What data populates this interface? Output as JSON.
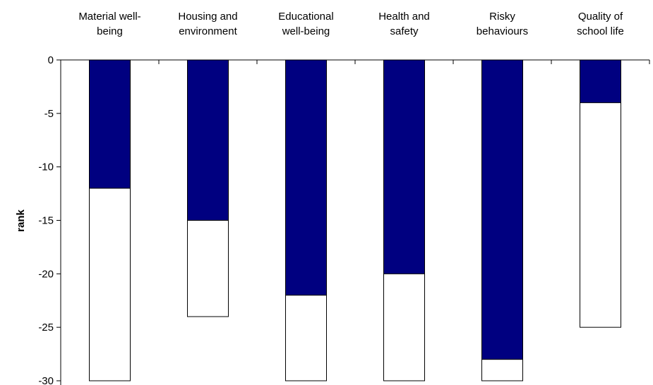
{
  "chart_data": {
    "type": "bar",
    "categories": [
      [
        "Material well-",
        "being"
      ],
      [
        "Housing and",
        "environment"
      ],
      [
        "Educational",
        "well-being"
      ],
      [
        "Health and",
        "safety"
      ],
      [
        "Risky",
        "behaviours"
      ],
      [
        "Quality of",
        "school life"
      ]
    ],
    "series": [
      {
        "values": [
          -12,
          -15,
          -22,
          -20,
          -28,
          -4
        ]
      },
      {
        "values": [
          -30,
          -24,
          -30,
          -30,
          -30,
          -25
        ]
      }
    ],
    "colors": {
      "dark": "#000080",
      "light": "#ffffff",
      "outline": "#000000"
    },
    "xlabel": "",
    "ylabel": "rank",
    "ylim": [
      -30,
      0
    ],
    "yticks": [
      0,
      -5,
      -10,
      -15,
      -20,
      -25,
      -30
    ],
    "grid": false,
    "legend": "none"
  }
}
